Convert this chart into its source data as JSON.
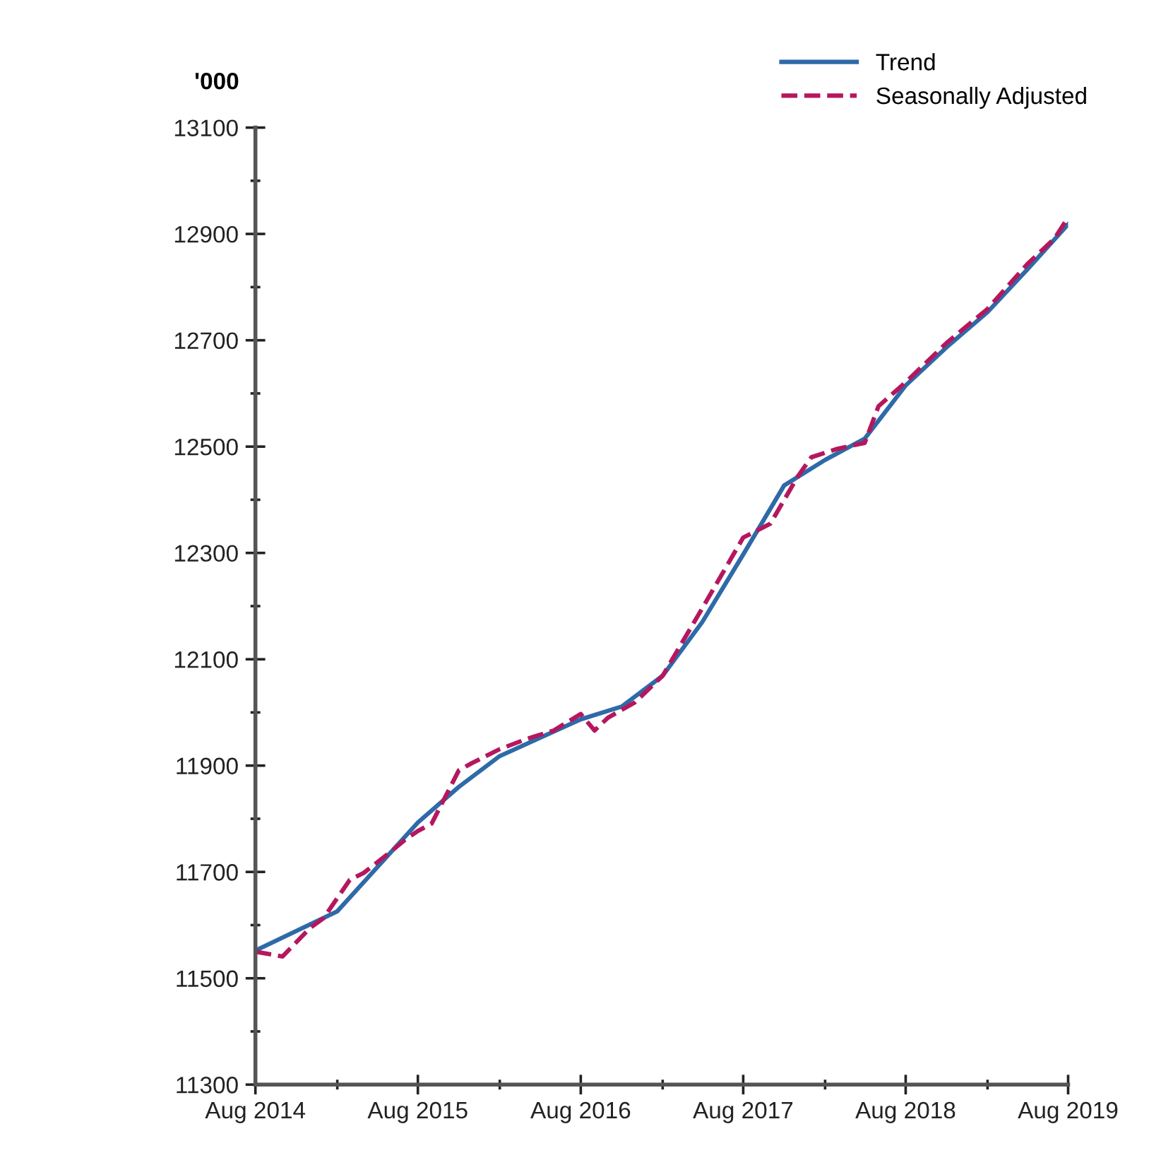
{
  "chart_data": {
    "type": "line",
    "ylabel": "'000",
    "legend": "top right",
    "grid": false,
    "xlim": [
      "2014-08",
      "2019-08"
    ],
    "xticks": [
      {
        "value": "2014-08",
        "label": "Aug 2014"
      },
      {
        "value": "2015-02",
        "label": null
      },
      {
        "value": "2015-08",
        "label": "Aug 2015"
      },
      {
        "value": "2016-02",
        "label": null
      },
      {
        "value": "2016-08",
        "label": "Aug 2016"
      },
      {
        "value": "2017-02",
        "label": null
      },
      {
        "value": "2017-08",
        "label": "Aug 2017"
      },
      {
        "value": "2018-02",
        "label": null
      },
      {
        "value": "2018-08",
        "label": "Aug 2018"
      },
      {
        "value": "2019-02",
        "label": null
      },
      {
        "value": "2019-08",
        "label": "Aug 2019"
      }
    ],
    "ylim": [
      11300,
      13100
    ],
    "yticks": [
      11300,
      {
        "value": 11400,
        "label": null
      },
      11500,
      {
        "value": 11600,
        "label": null
      },
      11700,
      {
        "value": 11800,
        "label": null
      },
      11900,
      {
        "value": 12000,
        "label": null
      },
      12100,
      {
        "value": 12200,
        "label": null
      },
      12300,
      {
        "value": 12400,
        "label": null
      },
      12500,
      {
        "value": 12600,
        "label": null
      },
      12700,
      {
        "value": 12800,
        "label": null
      },
      12900,
      {
        "value": 13000,
        "label": null
      },
      13100
    ],
    "series": [
      {
        "name": "Trend",
        "color": "#2e6aa8",
        "line_style": "solid",
        "x": [
          "2014-08",
          "2015-02",
          "2015-08",
          "2015-11",
          "2016-02",
          "2016-05",
          "2016-08",
          "2016-11",
          "2017-02",
          "2017-05",
          "2017-08",
          "2017-11",
          "2018-02",
          "2018-05",
          "2018-08",
          "2018-11",
          "2019-02",
          "2019-05",
          "2019-08"
        ],
        "values": [
          11552,
          11626,
          11793,
          11860,
          11918,
          11952,
          11987,
          12011,
          12069,
          12170,
          12297,
          12427,
          12475,
          12515,
          12615,
          12687,
          12753,
          12833,
          12918
        ]
      },
      {
        "name": "Seasonally Adjusted",
        "color": "#b5175e",
        "line_style": "dashed",
        "x": [
          "2014-08",
          "2014-10",
          "2014-12",
          "2015-01",
          "2015-03",
          "2015-04",
          "2015-06",
          "2015-07",
          "2015-08",
          "2015-09",
          "2015-11",
          "2015-12",
          "2016-02",
          "2016-04",
          "2016-06",
          "2016-08",
          "2016-09",
          "2016-10",
          "2016-12",
          "2017-02",
          "2017-05",
          "2017-08",
          "2017-09",
          "2017-10",
          "2017-12",
          "2018-01",
          "2018-03",
          "2018-05",
          "2018-06",
          "2018-08",
          "2018-11",
          "2019-02",
          "2019-05",
          "2019-07",
          "2019-08"
        ],
        "values": [
          11550,
          11541,
          11594,
          11613,
          11685,
          11698,
          11738,
          11759,
          11777,
          11791,
          11891,
          11905,
          11931,
          11950,
          11966,
          11997,
          11966,
          11990,
          12019,
          12069,
          12196,
          12329,
          12342,
          12355,
          12443,
          12480,
          12496,
          12507,
          12576,
          12621,
          12695,
          12759,
          12843,
          12891,
          12931
        ]
      }
    ]
  }
}
